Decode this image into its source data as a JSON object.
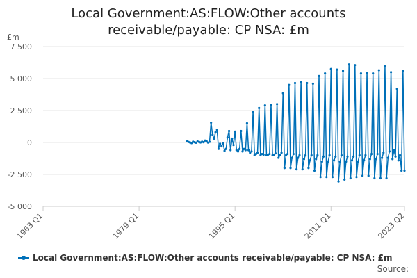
{
  "chart_data": {
    "type": "line",
    "title_lines": [
      "Local Government:AS:FLOW:Other accounts",
      "receivable/payable: CP NSA: £m"
    ],
    "ylabel": "£m",
    "xlabel": "",
    "ylim": [
      -5000,
      7500
    ],
    "yticks": [
      -5000,
      -2500,
      0,
      2500,
      5000,
      7500
    ],
    "ytick_labels": [
      "-5 000",
      "-2 500",
      "0",
      "2 500",
      "5 000",
      "7 500"
    ],
    "xlim": [
      "1963 Q1",
      "2023 Q2"
    ],
    "xticks": [
      "1963 Q1",
      "1979 Q1",
      "1995 Q1",
      "2011 Q1",
      "2023 Q2"
    ],
    "grid": "horizontal",
    "legend_position": "bottom",
    "color": "#0070b8",
    "series": [
      {
        "name": "Local Government:AS:FLOW:Other accounts receivable/payable: CP NSA: £m",
        "points": [
          [
            "1987 Q1",
            80
          ],
          [
            "1987 Q2",
            40
          ],
          [
            "1987 Q3",
            0
          ],
          [
            "1987 Q4",
            -50
          ],
          [
            "1988 Q1",
            60
          ],
          [
            "1988 Q2",
            20
          ],
          [
            "1988 Q3",
            -20
          ],
          [
            "1988 Q4",
            80
          ],
          [
            "1989 Q1",
            40
          ],
          [
            "1989 Q2",
            0
          ],
          [
            "1989 Q3",
            60
          ],
          [
            "1989 Q4",
            20
          ],
          [
            "1990 Q1",
            150
          ],
          [
            "1990 Q2",
            100
          ],
          [
            "1990 Q3",
            -10
          ],
          [
            "1990 Q4",
            50
          ],
          [
            "1991 Q1",
            1550
          ],
          [
            "1991 Q2",
            600
          ],
          [
            "1991 Q3",
            300
          ],
          [
            "1991 Q4",
            800
          ],
          [
            "1992 Q1",
            1000
          ],
          [
            "1992 Q2",
            -500
          ],
          [
            "1992 Q3",
            -100
          ],
          [
            "1992 Q4",
            -300
          ],
          [
            "1993 Q1",
            -50
          ],
          [
            "1993 Q2",
            -650
          ],
          [
            "1993 Q3",
            -500
          ],
          [
            "1993 Q4",
            400
          ],
          [
            "1994 Q1",
            900
          ],
          [
            "1994 Q2",
            -600
          ],
          [
            "1994 Q3",
            300
          ],
          [
            "1994 Q4",
            -200
          ],
          [
            "1995 Q1",
            850
          ],
          [
            "1995 Q2",
            -600
          ],
          [
            "1995 Q3",
            -700
          ],
          [
            "1995 Q4",
            -500
          ],
          [
            "1996 Q1",
            900
          ],
          [
            "1996 Q2",
            -700
          ],
          [
            "1996 Q3",
            -500
          ],
          [
            "1996 Q4",
            -600
          ],
          [
            "1997 Q1",
            1500
          ],
          [
            "1997 Q2",
            -600
          ],
          [
            "1997 Q3",
            -800
          ],
          [
            "1997 Q4",
            -700
          ],
          [
            "1998 Q1",
            2400
          ],
          [
            "1998 Q2",
            -1000
          ],
          [
            "1998 Q3",
            -900
          ],
          [
            "1998 Q4",
            -800
          ],
          [
            "1999 Q1",
            2700
          ],
          [
            "1999 Q2",
            -1000
          ],
          [
            "1999 Q3",
            -900
          ],
          [
            "1999 Q4",
            -950
          ],
          [
            "2000 Q1",
            2900
          ],
          [
            "2000 Q2",
            -1000
          ],
          [
            "2000 Q3",
            -950
          ],
          [
            "2000 Q4",
            -900
          ],
          [
            "2001 Q1",
            2950
          ],
          [
            "2001 Q2",
            -1000
          ],
          [
            "2001 Q3",
            -950
          ],
          [
            "2001 Q4",
            -850
          ],
          [
            "2002 Q1",
            3000
          ],
          [
            "2002 Q2",
            -1200
          ],
          [
            "2002 Q3",
            -1000
          ],
          [
            "2002 Q4",
            -800
          ],
          [
            "2003 Q1",
            3850
          ],
          [
            "2003 Q2",
            -2000
          ],
          [
            "2003 Q3",
            -1000
          ],
          [
            "2003 Q4",
            -900
          ],
          [
            "2004 Q1",
            4500
          ],
          [
            "2004 Q2",
            -2000
          ],
          [
            "2004 Q3",
            -1200
          ],
          [
            "2004 Q4",
            -900
          ],
          [
            "2005 Q1",
            4650
          ],
          [
            "2005 Q2",
            -2100
          ],
          [
            "2005 Q3",
            -1200
          ],
          [
            "2005 Q4",
            -1000
          ],
          [
            "2006 Q1",
            4700
          ],
          [
            "2006 Q2",
            -2100
          ],
          [
            "2006 Q3",
            -1300
          ],
          [
            "2006 Q4",
            -1000
          ],
          [
            "2007 Q1",
            4650
          ],
          [
            "2007 Q2",
            -2000
          ],
          [
            "2007 Q3",
            -1400
          ],
          [
            "2007 Q4",
            -1000
          ],
          [
            "2008 Q1",
            4600
          ],
          [
            "2008 Q2",
            -2200
          ],
          [
            "2008 Q3",
            -1300
          ],
          [
            "2008 Q4",
            -1000
          ],
          [
            "2009 Q1",
            5200
          ],
          [
            "2009 Q2",
            -2700
          ],
          [
            "2009 Q3",
            -1500
          ],
          [
            "2009 Q4",
            -1100
          ],
          [
            "2010 Q1",
            5400
          ],
          [
            "2010 Q2",
            -2700
          ],
          [
            "2010 Q3",
            -1500
          ],
          [
            "2010 Q4",
            -1000
          ],
          [
            "2011 Q1",
            5750
          ],
          [
            "2011 Q2",
            -2700
          ],
          [
            "2011 Q3",
            -1400
          ],
          [
            "2011 Q4",
            -1100
          ],
          [
            "2012 Q1",
            5700
          ],
          [
            "2012 Q2",
            -3050
          ],
          [
            "2012 Q3",
            -1500
          ],
          [
            "2012 Q4",
            -1000
          ],
          [
            "2013 Q1",
            5600
          ],
          [
            "2013 Q2",
            -2900
          ],
          [
            "2013 Q3",
            -1500
          ],
          [
            "2013 Q4",
            -1100
          ],
          [
            "2014 Q1",
            6100
          ],
          [
            "2014 Q2",
            -2800
          ],
          [
            "2014 Q3",
            -1400
          ],
          [
            "2014 Q4",
            -1100
          ],
          [
            "2015 Q1",
            6050
          ],
          [
            "2015 Q2",
            -2700
          ],
          [
            "2015 Q3",
            -1500
          ],
          [
            "2015 Q4",
            -1000
          ],
          [
            "2016 Q1",
            5400
          ],
          [
            "2016 Q2",
            -2600
          ],
          [
            "2016 Q3",
            -1400
          ],
          [
            "2016 Q4",
            -1000
          ],
          [
            "2017 Q1",
            5450
          ],
          [
            "2017 Q2",
            -2600
          ],
          [
            "2017 Q3",
            -1300
          ],
          [
            "2017 Q4",
            -900
          ],
          [
            "2018 Q1",
            5400
          ],
          [
            "2018 Q2",
            -2800
          ],
          [
            "2018 Q3",
            -1300
          ],
          [
            "2018 Q4",
            -900
          ],
          [
            "2019 Q1",
            5650
          ],
          [
            "2019 Q2",
            -2800
          ],
          [
            "2019 Q3",
            -1200
          ],
          [
            "2019 Q4",
            -800
          ],
          [
            "2020 Q1",
            5950
          ],
          [
            "2020 Q2",
            -2800
          ],
          [
            "2020 Q3",
            -1200
          ],
          [
            "2020 Q4",
            -700
          ],
          [
            "2021 Q1",
            5500
          ],
          [
            "2021 Q2",
            -1300
          ],
          [
            "2021 Q3",
            -600
          ],
          [
            "2021 Q4",
            -1100
          ],
          [
            "2022 Q1",
            4200
          ],
          [
            "2022 Q2",
            -1400
          ],
          [
            "2022 Q3",
            -1000
          ],
          [
            "2022 Q4",
            -2200
          ],
          [
            "2023 Q1",
            5600
          ],
          [
            "2023 Q2",
            -2200
          ]
        ]
      }
    ]
  },
  "source_label": "Source:"
}
